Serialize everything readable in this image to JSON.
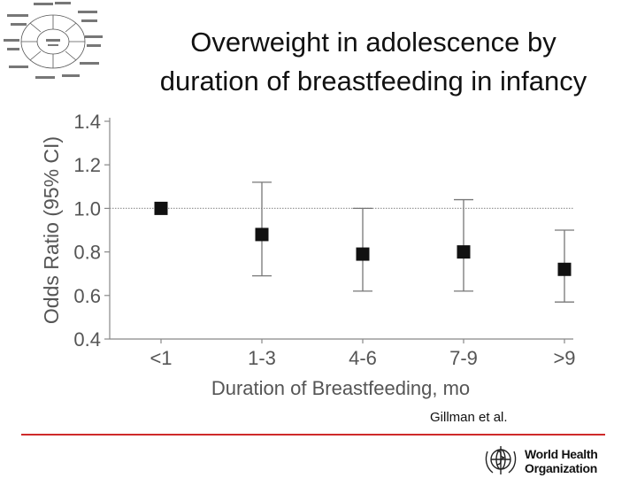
{
  "slide": {
    "title_line1": "Overweight in adolescence by",
    "title_line2": "duration of breastfeeding in infancy",
    "citation": "Gillman et al.",
    "organization": {
      "line1": "World Health",
      "line2": "Organization",
      "emblem": "who-emblem",
      "color": "#111111"
    },
    "decor": {
      "top_left_graphic": "cycle-diagram-icon",
      "rule_color": "#cf2a2a"
    }
  },
  "chart_data": {
    "type": "scatter",
    "title": "",
    "xlabel": "Duration of Breastfeeding, mo",
    "ylabel": "Odds Ratio (95% CI)",
    "categories": [
      "<1",
      "1-3",
      "4-6",
      "7-9",
      ">9"
    ],
    "points": [
      {
        "category": "<1",
        "value": 1.0,
        "ci_low": null,
        "ci_high": null
      },
      {
        "category": "1-3",
        "value": 0.88,
        "ci_low": 0.69,
        "ci_high": 1.12
      },
      {
        "category": "4-6",
        "value": 0.79,
        "ci_low": 0.62,
        "ci_high": 1.0
      },
      {
        "category": "7-9",
        "value": 0.8,
        "ci_low": 0.62,
        "ci_high": 1.04
      },
      {
        "category": ">9",
        "value": 0.72,
        "ci_low": 0.57,
        "ci_high": 0.9
      }
    ],
    "ylim": [
      0.4,
      1.4
    ],
    "yticks": [
      "0.4",
      "0.6",
      "0.8",
      "1.0",
      "1.2",
      "1.4"
    ],
    "reference_line": 1.0,
    "grid": false,
    "colors": {
      "marker": "#111111",
      "errorbar": "#777777",
      "axis": "#888888",
      "text": "#555555"
    }
  }
}
